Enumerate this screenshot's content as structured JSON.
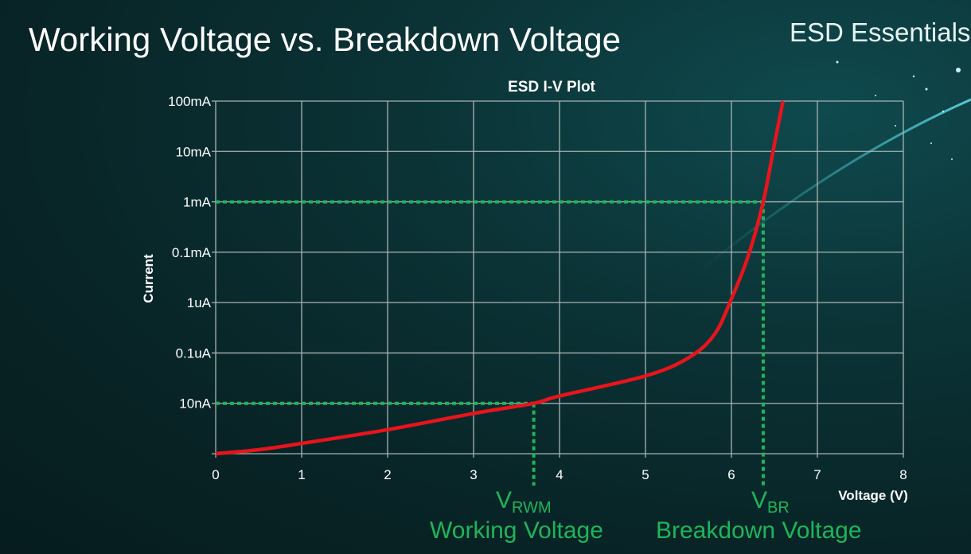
{
  "slide": {
    "title": "Working Voltage vs. Breakdown Voltage",
    "brand": "ESD Essentials"
  },
  "chart_data": {
    "type": "line",
    "title": "ESD I-V Plot",
    "xlabel": "Voltage (V)",
    "ylabel": "Current",
    "xlim": [
      0,
      8
    ],
    "x_ticks": [
      0,
      1,
      2,
      3,
      4,
      5,
      6,
      7,
      8
    ],
    "y_scale": "log",
    "ylim": [
      1e-09,
      0.1
    ],
    "y_ticks": [
      {
        "value": 1e-08,
        "label": "10nA"
      },
      {
        "value": 1e-07,
        "label": "0.1uA"
      },
      {
        "value": 1e-06,
        "label": "1uA"
      },
      {
        "value": 0.0001,
        "label": "0.1mA"
      },
      {
        "value": 0.001,
        "label": "1mA"
      },
      {
        "value": 0.01,
        "label": "10mA"
      },
      {
        "value": 0.1,
        "label": "100mA"
      }
    ],
    "grid": true,
    "series": [
      {
        "color": "#e8141c",
        "x": [
          0,
          0.5,
          1,
          2,
          3,
          3.7,
          4,
          5,
          5.5,
          5.8,
          6,
          6.2,
          6.37,
          6.5,
          6.6
        ],
        "y": [
          1e-09,
          1.2e-09,
          1.6e-09,
          3e-09,
          6.3e-09,
          1e-08,
          1.4e-08,
          3.5e-08,
          8e-08,
          2.3e-07,
          1.4e-06,
          7.9e-05,
          0.001,
          0.014,
          0.1
        ]
      }
    ],
    "reference_lines": {
      "color": "#1fb45a",
      "working": {
        "voltage": 3.7,
        "current": 1e-08,
        "symbol": "V",
        "subscript": "RWM",
        "label": "Working Voltage"
      },
      "breakdown": {
        "voltage": 6.37,
        "current": 0.001,
        "symbol": "V",
        "subscript": "BR",
        "label": "Breakdown Voltage"
      }
    }
  }
}
